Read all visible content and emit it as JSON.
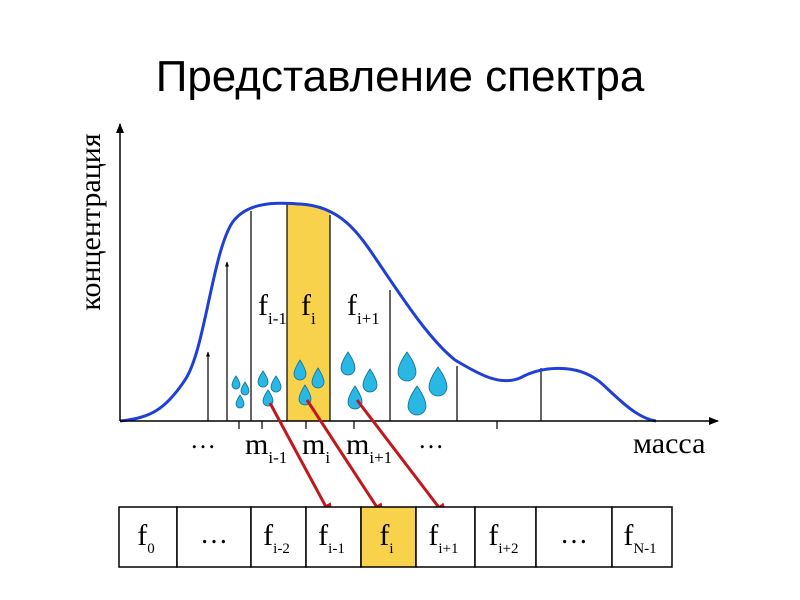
{
  "title": "Представление спектра",
  "colors": {
    "curve": "#1f3fd6",
    "highlight": "#f8d24a",
    "arrow": "#c0181c",
    "drop": "#29b7e3",
    "axis": "#000000"
  },
  "axes": {
    "y_label": "концентрация",
    "x_label": "масса"
  },
  "spectrum_labels": {
    "f_prev": {
      "base": "f",
      "sub": "i-1"
    },
    "f_cur": {
      "base": "f",
      "sub": "i"
    },
    "f_next": {
      "base": "f",
      "sub": "i+1"
    }
  },
  "mass_labels": {
    "ellipsis_left": "…",
    "m_prev": {
      "base": "m",
      "sub": "i-1"
    },
    "m_cur": {
      "base": "m",
      "sub": "i"
    },
    "m_next": {
      "base": "m",
      "sub": "i+1"
    },
    "ellipsis_right": "…"
  },
  "array_cells": [
    {
      "base": "f",
      "sub": "0",
      "highlighted": false
    },
    {
      "base": "…",
      "sub": "",
      "highlighted": false
    },
    {
      "base": "f",
      "sub": "i-2",
      "highlighted": false
    },
    {
      "base": "f",
      "sub": "i-1",
      "highlighted": false
    },
    {
      "base": "f",
      "sub": "i",
      "highlighted": true
    },
    {
      "base": "f",
      "sub": "i+1",
      "highlighted": false
    },
    {
      "base": "f",
      "sub": "i+2",
      "highlighted": false
    },
    {
      "base": "…",
      "sub": "",
      "highlighted": false
    },
    {
      "base": "f",
      "sub": "N-1",
      "highlighted": false
    }
  ]
}
